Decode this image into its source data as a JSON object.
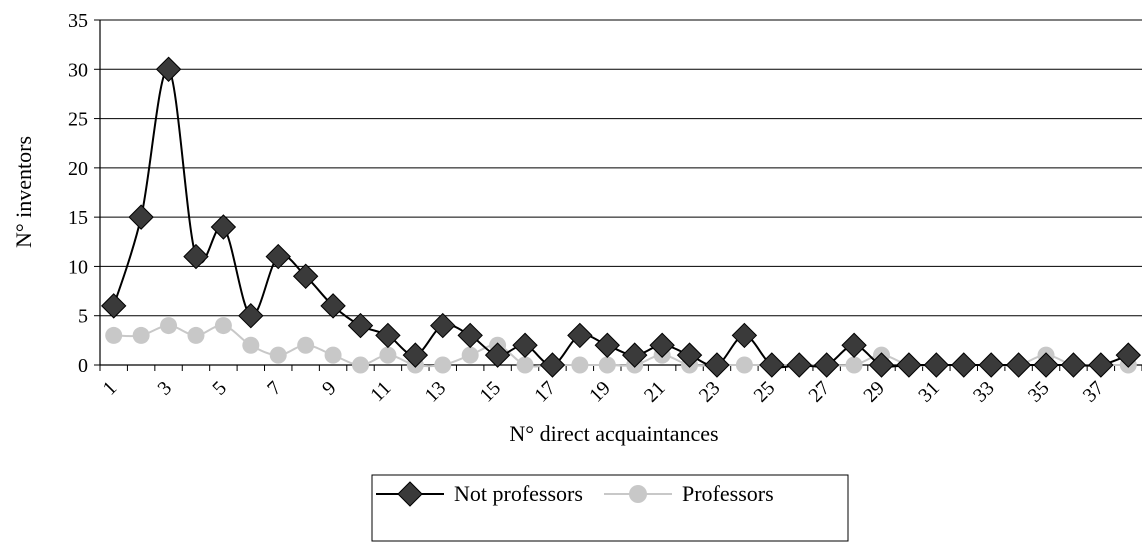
{
  "chart_data": {
    "type": "line",
    "title": "",
    "xlabel": "N° direct acquaintances",
    "ylabel": "N° inventors",
    "ylim": [
      0,
      35
    ],
    "yticks": [
      0,
      5,
      10,
      15,
      20,
      25,
      30,
      35
    ],
    "x": [
      1,
      2,
      3,
      4,
      5,
      6,
      7,
      8,
      9,
      10,
      11,
      12,
      13,
      14,
      15,
      16,
      17,
      18,
      19,
      20,
      21,
      22,
      23,
      24,
      25,
      26,
      27,
      28,
      29,
      30,
      31,
      32,
      33,
      34,
      35,
      36,
      37,
      38
    ],
    "xtick_labels": [
      "1",
      "3",
      "5",
      "7",
      "9",
      "11",
      "13",
      "15",
      "17",
      "19",
      "21",
      "23",
      "25",
      "27",
      "29",
      "31",
      "33",
      "35",
      "37"
    ],
    "grid": "horizontal",
    "legend_position": "bottom",
    "series": [
      {
        "name": "Not professors",
        "color": "#000000",
        "marker": "diamond",
        "marker_color": "#3a3a3a",
        "values": [
          6,
          15,
          30,
          11,
          14,
          5,
          11,
          9,
          6,
          4,
          3,
          1,
          4,
          3,
          1,
          2,
          0,
          3,
          2,
          1,
          2,
          1,
          0,
          3,
          0,
          0,
          0,
          2,
          0,
          0,
          0,
          0,
          0,
          0,
          0,
          0,
          0,
          1
        ]
      },
      {
        "name": "Professors",
        "color": "#c8c8c8",
        "marker": "circle",
        "marker_color": "#c8c8c8",
        "values": [
          3,
          3,
          4,
          3,
          4,
          2,
          1,
          2,
          1,
          0,
          1,
          0,
          0,
          1,
          2,
          0,
          0,
          0,
          0,
          0,
          1,
          0,
          0,
          0,
          0,
          0,
          0,
          0,
          1,
          0,
          0,
          0,
          0,
          0,
          1,
          0,
          0,
          0
        ]
      }
    ]
  }
}
